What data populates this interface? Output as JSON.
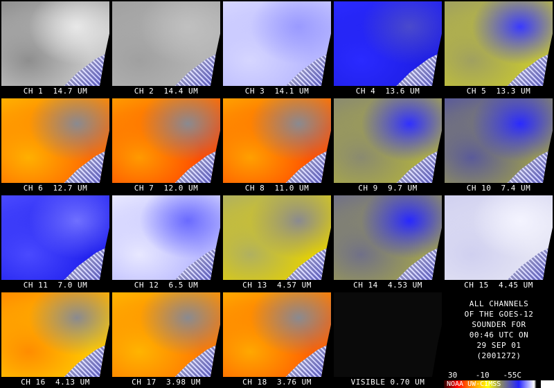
{
  "panels": [
    {
      "label": "CH 1  14.7 UM",
      "colors": [
        "#c8c8c8",
        "#8e8e8e",
        "#e8e8e8"
      ]
    },
    {
      "label": "CH 2  14.4 UM",
      "colors": [
        "#b4b4b4",
        "#a0a0a0",
        "#c0c0c0"
      ]
    },
    {
      "label": "CH 3  14.1 UM",
      "colors": [
        "#b8b8ff",
        "#d6d6ff",
        "#9a9aff"
      ]
    },
    {
      "label": "CH 4  13.6 UM",
      "colors": [
        "#1e1ee6",
        "#2a2aff",
        "#4a4acc"
      ]
    },
    {
      "label": "CH 5  13.3 UM",
      "colors": [
        "#c8c830",
        "#a0a060",
        "#3a3aff"
      ]
    },
    {
      "label": "CH 6  12.7 UM",
      "colors": [
        "#ff6a00",
        "#ffb000",
        "#8a8a90"
      ]
    },
    {
      "label": "CH 7  12.0 UM",
      "colors": [
        "#ff4a00",
        "#ff9a00",
        "#8a8a90"
      ]
    },
    {
      "label": "CH 8  11.0 UM",
      "colors": [
        "#ff5000",
        "#ffa000",
        "#8a8a90"
      ]
    },
    {
      "label": "CH 9  9.7 UM",
      "colors": [
        "#b0b040",
        "#8a8a70",
        "#3030ff"
      ]
    },
    {
      "label": "CH 10  7.4 UM",
      "colors": [
        "#9a9a50",
        "#5a5a9a",
        "#2a2aff"
      ]
    },
    {
      "label": "CH 11  7.0 UM",
      "colors": [
        "#2020ee",
        "#4a4aff",
        "#7070ff"
      ]
    },
    {
      "label": "CH 12  6.5 UM",
      "colors": [
        "#b8b8ff",
        "#e8e8ff",
        "#6a6aff"
      ]
    },
    {
      "label": "CH 13  4.57 UM",
      "colors": [
        "#e6d200",
        "#b0b060",
        "#8a8a90"
      ]
    },
    {
      "label": "CH 14  4.53 UM",
      "colors": [
        "#a0a050",
        "#707088",
        "#2828ff"
      ]
    },
    {
      "label": "CH 15  4.45 UM",
      "colors": [
        "#e4e4f4",
        "#d0d0f0",
        "#f4f4ff"
      ]
    },
    {
      "label": "CH 16  4.13 UM",
      "colors": [
        "#ffc800",
        "#ff8c00",
        "#8a8a90"
      ]
    },
    {
      "label": "CH 17  3.98 UM",
      "colors": [
        "#ff7a00",
        "#ffb400",
        "#8a8a90"
      ]
    },
    {
      "label": "CH 18  3.76 UM",
      "colors": [
        "#ff6000",
        "#ffa800",
        "#8a8a90"
      ]
    },
    {
      "label": "VISIBLE 0.70 UM",
      "colors": [
        "#0a0a0a",
        "#0a0a0a",
        "#0a0a0a"
      ],
      "empty": true
    }
  ],
  "info": {
    "lines": [
      "ALL CHANNELS",
      "OF THE GOES-12",
      "SOUNDER FOR",
      "00:46 UTC ON",
      "29 SEP 01",
      "(2001272)"
    ],
    "scale": "30    -10   -55C",
    "credit": "NOAA UW-CIMSS"
  }
}
